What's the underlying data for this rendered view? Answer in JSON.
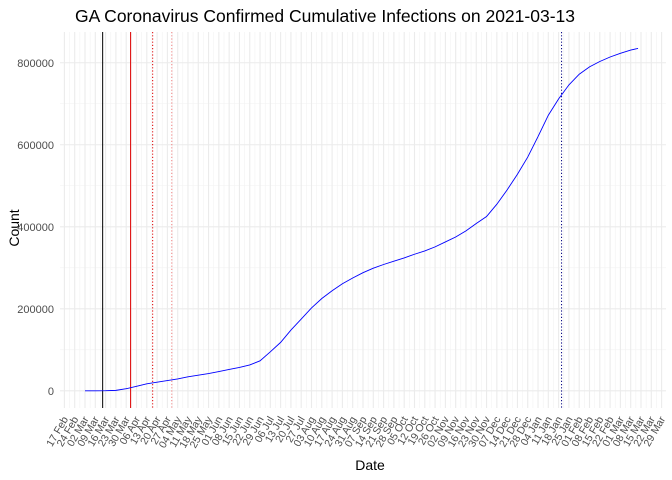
{
  "chart_data": {
    "type": "line",
    "title": "GA Coronavirus Confirmed Cumulative Infections on 2021-03-13",
    "xlabel": "Date",
    "ylabel": "Count",
    "grid": true,
    "ylim": [
      -42000,
      875000
    ],
    "yticks": [
      0,
      200000,
      400000,
      600000,
      800000
    ],
    "ytick_labels": [
      "0",
      "200000",
      "400000",
      "600000",
      "800000"
    ],
    "xlim": [
      "2020-02-14",
      "2021-04-01"
    ],
    "xticks": [
      "2020-02-17",
      "2020-02-24",
      "2020-03-02",
      "2020-03-09",
      "2020-03-16",
      "2020-03-23",
      "2020-03-30",
      "2020-04-06",
      "2020-04-13",
      "2020-04-20",
      "2020-04-27",
      "2020-05-04",
      "2020-05-11",
      "2020-05-18",
      "2020-05-25",
      "2020-06-01",
      "2020-06-08",
      "2020-06-15",
      "2020-06-22",
      "2020-06-29",
      "2020-07-06",
      "2020-07-13",
      "2020-07-20",
      "2020-07-27",
      "2020-08-03",
      "2020-08-10",
      "2020-08-17",
      "2020-08-24",
      "2020-08-31",
      "2020-09-07",
      "2020-09-14",
      "2020-09-21",
      "2020-09-28",
      "2020-10-05",
      "2020-10-12",
      "2020-10-19",
      "2020-10-26",
      "2020-11-02",
      "2020-11-09",
      "2020-11-16",
      "2020-11-23",
      "2020-11-30",
      "2020-12-07",
      "2020-12-14",
      "2020-12-21",
      "2020-12-28",
      "2021-01-04",
      "2021-01-11",
      "2021-01-18",
      "2021-01-25",
      "2021-02-01",
      "2021-02-08",
      "2021-02-15",
      "2021-02-22",
      "2021-03-01",
      "2021-03-08",
      "2021-03-15",
      "2021-03-22",
      "2021-03-29"
    ],
    "xtick_labels": [
      "17 Feb",
      "24 Feb",
      "02 Mar",
      "09 Mar",
      "16 Mar",
      "23 Mar",
      "30 Mar",
      "06 Apr",
      "13 Apr",
      "20 Apr",
      "27 Apr",
      "04 May",
      "11 May",
      "18 May",
      "25 May",
      "01 Jun",
      "08 Jun",
      "15 Jun",
      "22 Jun",
      "29 Jun",
      "06 Jul",
      "13 Jul",
      "20 Jul",
      "27 Jul",
      "03 Aug",
      "10 Aug",
      "17 Aug",
      "24 Aug",
      "31 Aug",
      "07 Sep",
      "14 Sep",
      "21 Sep",
      "28 Sep",
      "05 Oct",
      "12 Oct",
      "19 Oct",
      "26 Oct",
      "02 Nov",
      "09 Nov",
      "16 Nov",
      "23 Nov",
      "30 Nov",
      "07 Dec",
      "14 Dec",
      "21 Dec",
      "28 Dec",
      "04 Jan",
      "11 Jan",
      "18 Jan",
      "25 Jan",
      "01 Feb",
      "08 Feb",
      "15 Feb",
      "22 Feb",
      "01 Mar",
      "08 Mar",
      "15 Mar",
      "22 Mar",
      "29 Mar"
    ],
    "series": [
      {
        "color": "#0000ff",
        "x": [
          "2020-03-02",
          "2020-03-09",
          "2020-03-16",
          "2020-03-23",
          "2020-03-30",
          "2020-04-06",
          "2020-04-13",
          "2020-04-20",
          "2020-04-27",
          "2020-05-04",
          "2020-05-11",
          "2020-05-18",
          "2020-05-25",
          "2020-06-01",
          "2020-06-08",
          "2020-06-15",
          "2020-06-22",
          "2020-06-29",
          "2020-07-06",
          "2020-07-13",
          "2020-07-20",
          "2020-07-27",
          "2020-08-03",
          "2020-08-10",
          "2020-08-17",
          "2020-08-24",
          "2020-08-31",
          "2020-09-07",
          "2020-09-14",
          "2020-09-21",
          "2020-09-28",
          "2020-10-05",
          "2020-10-12",
          "2020-10-19",
          "2020-10-26",
          "2020-11-02",
          "2020-11-09",
          "2020-11-16",
          "2020-11-23",
          "2020-11-30",
          "2020-12-07",
          "2020-12-14",
          "2020-12-21",
          "2020-12-28",
          "2021-01-04",
          "2021-01-11",
          "2021-01-18",
          "2021-01-25",
          "2021-02-01",
          "2021-02-08",
          "2021-02-15",
          "2021-02-22",
          "2021-03-01",
          "2021-03-08",
          "2021-03-13"
        ],
        "y": [
          0,
          0,
          150,
          1000,
          5000,
          11000,
          17000,
          21000,
          25000,
          29000,
          34000,
          38000,
          42000,
          47000,
          52000,
          57000,
          63000,
          73000,
          95000,
          118000,
          148000,
          175000,
          202000,
          225000,
          244000,
          261000,
          275000,
          288000,
          299000,
          308000,
          316000,
          324000,
          333000,
          341000,
          351000,
          363000,
          375000,
          390000,
          408000,
          425000,
          455000,
          490000,
          528000,
          570000,
          620000,
          672000,
          712000,
          746000,
          772000,
          790000,
          803000,
          814000,
          823000,
          831000,
          835000
        ]
      }
    ],
    "vlines": [
      {
        "x": "2020-03-14",
        "color": "#000000",
        "style": "solid"
      },
      {
        "x": "2020-04-02",
        "color": "#dd0000",
        "style": "solid"
      },
      {
        "x": "2020-04-17",
        "color": "#dd0000",
        "style": "dotted"
      },
      {
        "x": "2020-04-30",
        "color": "#f08080",
        "style": "dotted"
      },
      {
        "x": "2021-01-20",
        "color": "#000080",
        "style": "dotted"
      }
    ],
    "legend": "none"
  }
}
